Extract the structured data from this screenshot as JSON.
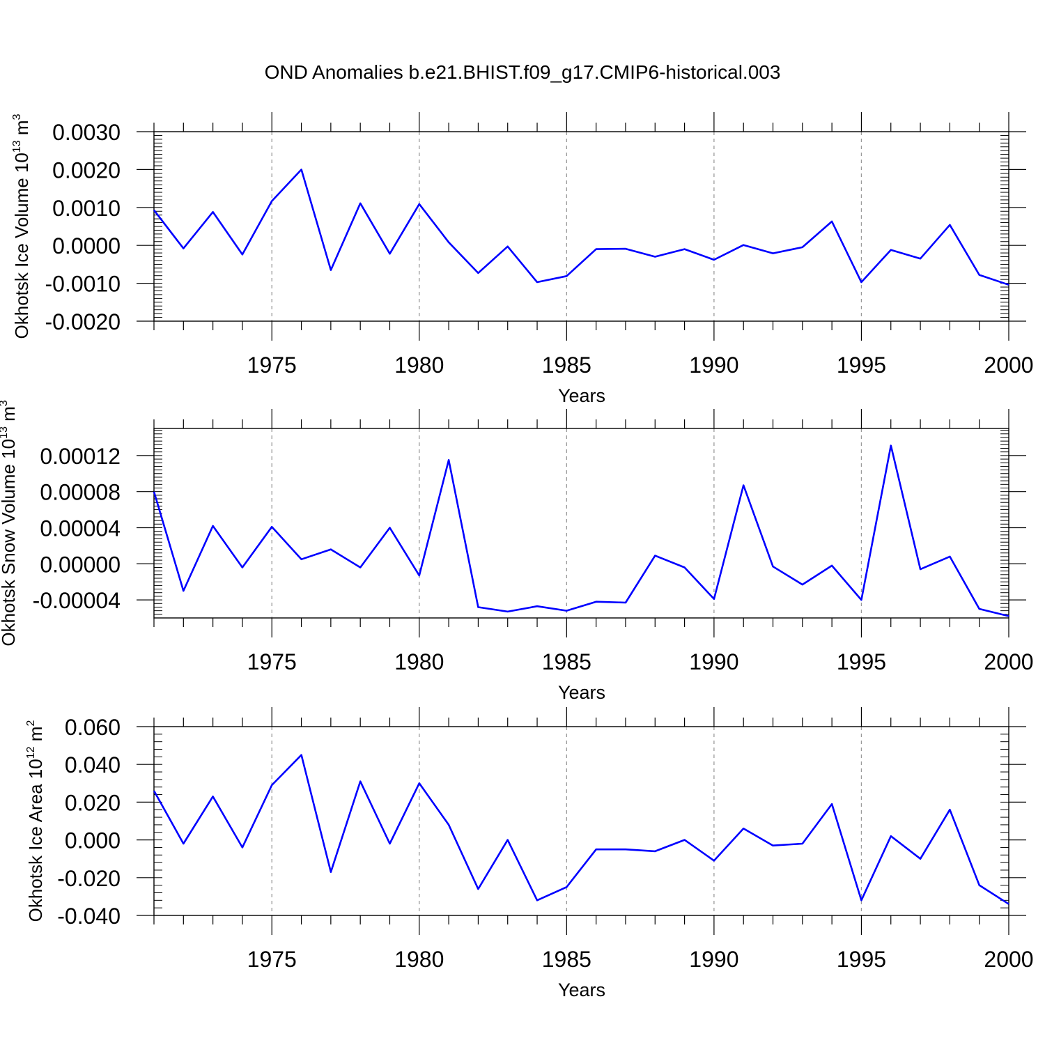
{
  "title": "OND Anomalies b.e21.BHIST.f09_g17.CMIP6-historical.003",
  "colors": {
    "line": "#0000ff",
    "axis": "#000000",
    "grid": "#999999"
  },
  "chart_data": [
    {
      "type": "line",
      "ylabel": "Okhotsk Ice Volume 10",
      "ylabel_exp": "13",
      "ylabel_unit": " m",
      "ylabel_unit_exp": "3",
      "xlabel": "Years",
      "xlim": [
        1971,
        2000
      ],
      "ylim": [
        -0.002,
        0.003
      ],
      "yticks": [
        -0.002,
        -0.001,
        0.0,
        0.001,
        0.002,
        0.003
      ],
      "ytick_labels": [
        "-0.0020",
        "-0.0010",
        "0.0000",
        "0.0010",
        "0.0020",
        "0.0030"
      ],
      "xticks": [
        1975,
        1980,
        1985,
        1990,
        1995,
        2000
      ],
      "xtick_labels": [
        "1975",
        "1980",
        "1985",
        "1990",
        "1995",
        "2000"
      ],
      "x": [
        1971,
        1972,
        1973,
        1974,
        1975,
        1976,
        1977,
        1978,
        1979,
        1980,
        1981,
        1982,
        1983,
        1984,
        1985,
        1986,
        1987,
        1988,
        1989,
        1990,
        1991,
        1992,
        1993,
        1994,
        1995,
        1996,
        1997,
        1998,
        1999,
        2000
      ],
      "values": [
        0.00093,
        -8e-05,
        0.00088,
        -0.00024,
        0.00117,
        0.002,
        -0.00065,
        0.00111,
        -0.00022,
        0.00109,
        8e-05,
        -0.00073,
        -3e-05,
        -0.00097,
        -0.00081,
        -0.0001,
        -9e-05,
        -0.0003,
        -0.0001,
        -0.00038,
        1e-05,
        -0.00021,
        -5e-05,
        0.00063,
        -0.00097,
        -0.00012,
        -0.00035,
        0.00054,
        -0.00078,
        -0.00104
      ]
    },
    {
      "type": "line",
      "ylabel": "Okhotsk Snow Volume 10",
      "ylabel_exp": "13",
      "ylabel_unit": " m",
      "ylabel_unit_exp": "3",
      "xlabel": "Years",
      "xlim": [
        1971,
        2000
      ],
      "ylim": [
        -6e-05,
        0.00015
      ],
      "yticks": [
        -4e-05,
        0.0,
        4e-05,
        8e-05,
        0.00012
      ],
      "ytick_labels": [
        "-0.00004",
        "0.00000",
        "0.00004",
        "0.00008",
        "0.00012"
      ],
      "xticks": [
        1975,
        1980,
        1985,
        1990,
        1995,
        2000
      ],
      "xtick_labels": [
        "1975",
        "1980",
        "1985",
        "1990",
        "1995",
        "2000"
      ],
      "x": [
        1971,
        1972,
        1973,
        1974,
        1975,
        1976,
        1977,
        1978,
        1979,
        1980,
        1981,
        1982,
        1983,
        1984,
        1985,
        1986,
        1987,
        1988,
        1989,
        1990,
        1991,
        1992,
        1993,
        1994,
        1995,
        1996,
        1997,
        1998,
        1999,
        2000
      ],
      "values": [
        8e-05,
        -3e-05,
        4.2e-05,
        -4e-06,
        4.1e-05,
        5e-06,
        1.6e-05,
        -4e-06,
        4e-05,
        -1.3e-05,
        0.000115,
        -4.8e-05,
        -5.3e-05,
        -4.7e-05,
        -5.2e-05,
        -4.2e-05,
        -4.3e-05,
        9e-06,
        -4e-06,
        -3.9e-05,
        8.7e-05,
        -3e-06,
        -2.3e-05,
        -2e-06,
        -4e-05,
        0.000131,
        -6e-06,
        8e-06,
        -5e-05,
        -5.8e-05
      ]
    },
    {
      "type": "line",
      "ylabel": "Okhotsk Ice Area 10",
      "ylabel_exp": "12",
      "ylabel_unit": " m",
      "ylabel_unit_exp": "2",
      "xlabel": "Years",
      "xlim": [
        1971,
        2000
      ],
      "ylim": [
        -0.04,
        0.06
      ],
      "yticks": [
        -0.04,
        -0.02,
        0.0,
        0.02,
        0.04,
        0.06
      ],
      "ytick_labels": [
        "-0.040",
        "-0.020",
        "0.000",
        "0.020",
        "0.040",
        "0.060"
      ],
      "xticks": [
        1975,
        1980,
        1985,
        1990,
        1995,
        2000
      ],
      "xtick_labels": [
        "1975",
        "1980",
        "1985",
        "1990",
        "1995",
        "2000"
      ],
      "x": [
        1971,
        1972,
        1973,
        1974,
        1975,
        1976,
        1977,
        1978,
        1979,
        1980,
        1981,
        1982,
        1983,
        1984,
        1985,
        1986,
        1987,
        1988,
        1989,
        1990,
        1991,
        1992,
        1993,
        1994,
        1995,
        1996,
        1997,
        1998,
        1999,
        2000
      ],
      "values": [
        0.026,
        -0.002,
        0.023,
        -0.004,
        0.029,
        0.045,
        -0.017,
        0.031,
        -0.002,
        0.03,
        0.008,
        -0.026,
        0.0,
        -0.032,
        -0.025,
        -0.005,
        -0.005,
        -0.006,
        0.0,
        -0.011,
        0.006,
        -0.003,
        -0.002,
        0.019,
        -0.032,
        0.002,
        -0.01,
        0.016,
        -0.024,
        -0.034
      ]
    }
  ]
}
